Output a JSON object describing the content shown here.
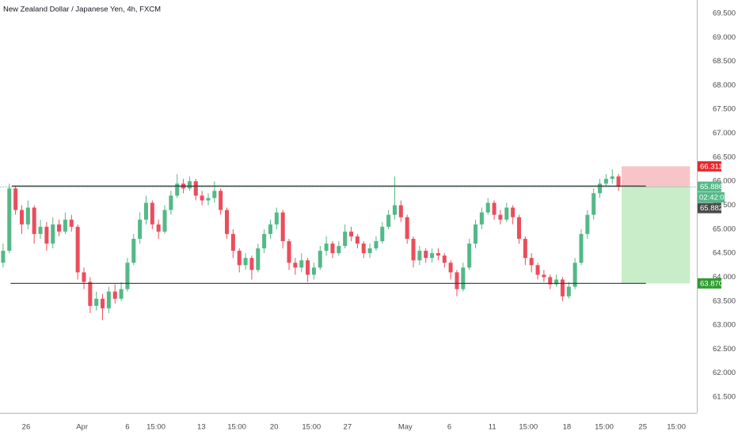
{
  "chart_data": {
    "type": "candlestick",
    "title": "New Zealand Dollar / Japanese Yen, 4h, FXCM",
    "up_color": "#53b987",
    "down_color": "#eb4d5c",
    "grid": false,
    "xlim": [
      -0.5,
      111.6
    ],
    "ylim": [
      61.17,
      69.78
    ],
    "yticks": [
      {
        "value": 61.5,
        "label": "61.500"
      },
      {
        "value": 62,
        "label": "62.000"
      },
      {
        "value": 62.5,
        "label": "62.500"
      },
      {
        "value": 63,
        "label": "63.000"
      },
      {
        "value": 63.5,
        "label": "63.500"
      },
      {
        "value": 64,
        "label": "64.000"
      },
      {
        "value": 64.5,
        "label": "64.500"
      },
      {
        "value": 65,
        "label": "65.000"
      },
      {
        "value": 65.5,
        "label": "65.500"
      },
      {
        "value": 66,
        "label": "66.000"
      },
      {
        "value": 66.5,
        "label": "66.500"
      },
      {
        "value": 67,
        "label": "67.000"
      },
      {
        "value": 67.5,
        "label": "67.500"
      },
      {
        "value": 68,
        "label": "68.000"
      },
      {
        "value": 68.5,
        "label": "68.500"
      },
      {
        "value": 69,
        "label": "69.000"
      },
      {
        "value": 69.5,
        "label": "69.500"
      }
    ],
    "xticks": [
      {
        "value": 3.7,
        "label": "26"
      },
      {
        "value": 12.7,
        "label": "Apr"
      },
      {
        "value": 20,
        "label": "6"
      },
      {
        "value": 24.6,
        "label": "15:00"
      },
      {
        "value": 31.9,
        "label": "13"
      },
      {
        "value": 37.6,
        "label": "15:00"
      },
      {
        "value": 43.6,
        "label": "20"
      },
      {
        "value": 49.6,
        "label": "15:00"
      },
      {
        "value": 55.4,
        "label": "27"
      },
      {
        "value": 64.7,
        "label": "May"
      },
      {
        "value": 71.8,
        "label": "6"
      },
      {
        "value": 78.7,
        "label": "11"
      },
      {
        "value": 84.5,
        "label": "15:00"
      },
      {
        "value": 90.7,
        "label": "18"
      },
      {
        "value": 96.7,
        "label": "15:00"
      },
      {
        "value": 102.9,
        "label": "25"
      },
      {
        "value": 108.3,
        "label": "15:00"
      }
    ],
    "open": [
      64.3,
      64.55,
      65.85,
      65.4,
      65.1,
      65.45,
      64.9,
      65.05,
      64.7,
      65.1,
      64.95,
      65.2,
      65.05,
      64.1,
      63.9,
      63.4,
      63.55,
      63.35,
      63.7,
      63.55,
      63.75,
      64.3,
      64.8,
      65.2,
      65.55,
      65.1,
      64.95,
      65.4,
      65.7,
      65.95,
      65.85,
      66.0,
      65.7,
      65.6,
      65.65,
      65.8,
      65.4,
      64.9,
      64.55,
      64.25,
      64.4,
      64.15,
      64.6,
      64.9,
      65.1,
      65.35,
      64.75,
      64.3,
      64.2,
      64.35,
      64.05,
      64.2,
      64.55,
      64.7,
      64.5,
      64.65,
      64.95,
      64.85,
      64.7,
      64.5,
      64.6,
      64.75,
      65.05,
      65.3,
      65.5,
      65.25,
      64.8,
      64.35,
      64.55,
      64.4,
      64.5,
      64.45,
      64.3,
      64.1,
      63.75,
      64.2,
      64.7,
      65.1,
      65.35,
      65.55,
      65.3,
      65.2,
      65.45,
      65.25,
      64.8,
      64.4,
      64.25,
      64.05,
      64.0,
      63.85,
      63.95,
      63.6,
      63.8,
      64.3,
      64.9,
      65.3,
      65.75,
      65.95,
      66.05,
      66.1
    ],
    "high": [
      64.7,
      65.95,
      65.9,
      65.5,
      65.6,
      65.5,
      65.2,
      65.15,
      65.25,
      65.2,
      65.35,
      65.3,
      65.1,
      64.2,
      64.0,
      63.7,
      63.65,
      63.8,
      63.85,
      63.9,
      64.4,
      64.9,
      65.35,
      65.7,
      65.6,
      65.2,
      65.5,
      65.8,
      66.15,
      66.05,
      66.1,
      66.05,
      65.8,
      65.75,
      66.0,
      65.85,
      65.45,
      65.0,
      64.6,
      64.5,
      64.45,
      64.7,
      65.0,
      65.2,
      65.45,
      65.4,
      64.8,
      64.4,
      64.5,
      64.4,
      64.3,
      64.65,
      64.85,
      64.75,
      64.75,
      65.1,
      65.05,
      64.9,
      64.75,
      64.7,
      64.85,
      65.15,
      65.4,
      66.1,
      65.6,
      65.3,
      64.85,
      64.65,
      64.6,
      64.6,
      64.6,
      64.5,
      64.35,
      64.15,
      64.3,
      64.8,
      65.2,
      65.45,
      65.65,
      65.6,
      65.4,
      65.55,
      65.5,
      65.3,
      64.85,
      64.5,
      64.3,
      64.15,
      64.05,
      64.05,
      64.0,
      63.9,
      64.4,
      65.0,
      65.4,
      65.85,
      66.05,
      66.15,
      66.25,
      66.15
    ],
    "low": [
      64.2,
      64.5,
      65.3,
      64.9,
      65.0,
      64.7,
      64.8,
      64.55,
      64.6,
      64.85,
      64.9,
      64.95,
      63.95,
      63.75,
      63.25,
      63.3,
      63.1,
      63.25,
      63.45,
      63.5,
      63.7,
      64.25,
      64.7,
      65.1,
      65.0,
      64.8,
      64.9,
      65.3,
      65.65,
      65.75,
      65.8,
      65.6,
      65.5,
      65.5,
      65.55,
      65.3,
      64.8,
      64.4,
      64.1,
      64.15,
      63.95,
      64.1,
      64.5,
      64.8,
      65.0,
      64.6,
      64.15,
      64.05,
      64.1,
      63.9,
      63.95,
      64.15,
      64.45,
      64.4,
      64.45,
      64.6,
      64.75,
      64.6,
      64.4,
      64.4,
      64.55,
      64.7,
      65.0,
      65.2,
      65.15,
      64.7,
      64.2,
      64.25,
      64.3,
      64.3,
      64.35,
      64.2,
      63.95,
      63.6,
      63.7,
      64.15,
      64.6,
      65.0,
      65.3,
      65.2,
      65.1,
      65.15,
      65.1,
      64.7,
      64.25,
      64.1,
      63.95,
      63.9,
      63.75,
      63.8,
      63.5,
      63.55,
      63.75,
      64.25,
      64.8,
      65.2,
      65.65,
      65.9,
      65.95,
      65.8
    ],
    "close": [
      64.55,
      65.85,
      65.4,
      65.1,
      65.45,
      64.9,
      65.05,
      64.7,
      65.1,
      64.95,
      65.2,
      65.05,
      64.1,
      63.9,
      63.4,
      63.55,
      63.35,
      63.7,
      63.55,
      63.75,
      64.3,
      64.8,
      65.2,
      65.55,
      65.1,
      64.95,
      65.4,
      65.7,
      65.95,
      65.85,
      66.0,
      65.7,
      65.6,
      65.65,
      65.8,
      65.4,
      64.9,
      64.55,
      64.25,
      64.4,
      64.15,
      64.6,
      64.9,
      65.1,
      65.35,
      64.75,
      64.3,
      64.2,
      64.35,
      64.05,
      64.2,
      64.55,
      64.7,
      64.5,
      64.65,
      64.95,
      64.85,
      64.7,
      64.5,
      64.6,
      64.75,
      65.05,
      65.3,
      65.5,
      65.25,
      64.8,
      64.35,
      64.55,
      64.4,
      64.5,
      64.45,
      64.3,
      64.1,
      63.75,
      64.2,
      64.7,
      65.1,
      65.35,
      65.55,
      65.3,
      65.2,
      65.45,
      65.25,
      64.8,
      64.4,
      64.25,
      64.05,
      64.0,
      63.85,
      63.95,
      63.6,
      63.8,
      64.3,
      64.9,
      65.3,
      65.75,
      65.95,
      66.05,
      66.1,
      65.886
    ],
    "levels": [
      {
        "value": 65.9,
        "from": 1.4,
        "to": 103.4
      },
      {
        "value": 63.87,
        "from": 1.2,
        "to": 103.4
      }
    ],
    "position": {
      "from": 99.5,
      "to": 110.5,
      "stop": 66.311,
      "entry": 65.886,
      "target": {
        "value": 63.87,
        "label": "63.870"
      },
      "stop_color": "#f7c5c8",
      "target_color": "#c9ecc9"
    },
    "countdown": "02:42:07",
    "last_price": 65.882
  }
}
